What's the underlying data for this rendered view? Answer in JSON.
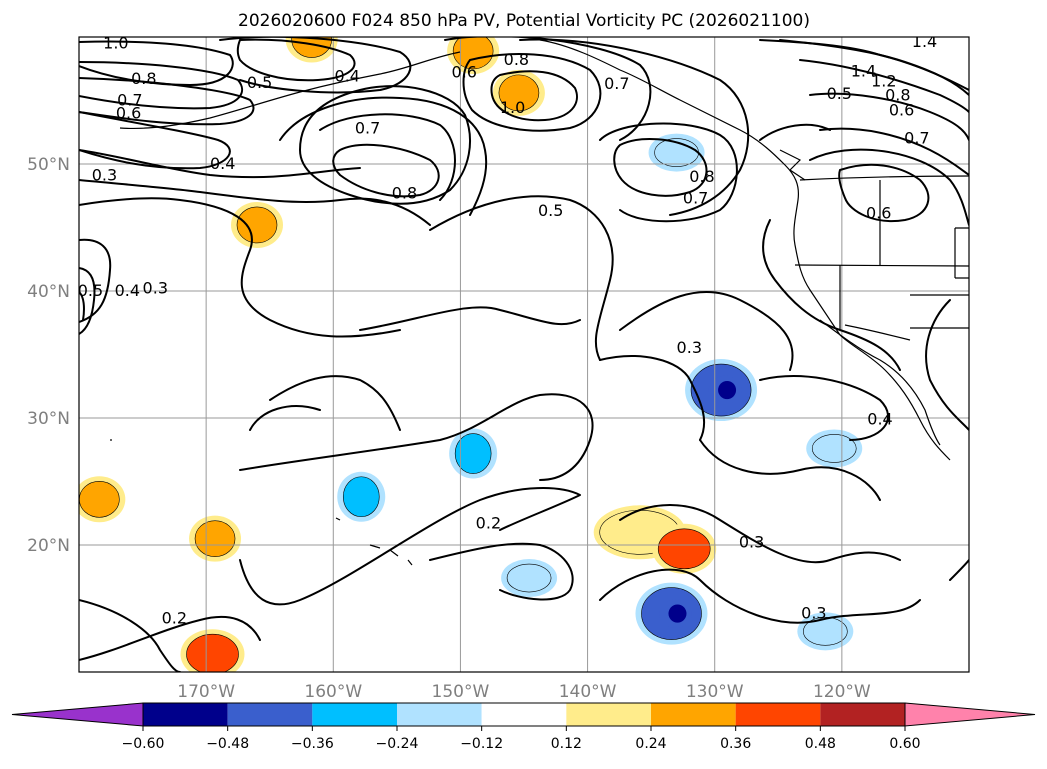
{
  "chart_data": {
    "type": "contour-map",
    "title": "2026020600 F024 850 hPa PV, Potential Vorticity PC (2026021100)",
    "projection": "lat-lon",
    "lon_range": [
      -180,
      -110
    ],
    "lat_range": [
      10,
      60
    ],
    "xaxis": {
      "ticks": [
        -170,
        -160,
        -150,
        -140,
        -130,
        -120
      ],
      "tick_labels": [
        "170°W",
        "160°W",
        "150°W",
        "140°W",
        "130°W",
        "120°W"
      ]
    },
    "yaxis": {
      "ticks": [
        20,
        30,
        40,
        50
      ],
      "tick_labels": [
        "20°N",
        "30°N",
        "40°N",
        "50°N"
      ]
    },
    "grid": true,
    "colorbar": {
      "orientation": "horizontal",
      "position": "bottom",
      "extend": "both",
      "levels": [
        -0.6,
        -0.48,
        -0.36,
        -0.24,
        -0.12,
        0.12,
        0.24,
        0.36,
        0.48,
        0.6
      ],
      "tick_labels": [
        "−0.60",
        "−0.48",
        "−0.36",
        "−0.24",
        "−0.12",
        "0.12",
        "0.24",
        "0.36",
        "0.48",
        "0.60"
      ],
      "colors": [
        "#9932cc",
        "#00008b",
        "#3a5fcd",
        "#00bfff",
        "#b0e2ff",
        "#ffffff",
        "#ffec8b",
        "#ffa500",
        "#ff4500",
        "#b22222",
        "#ff82ab"
      ]
    },
    "contour_labels": [
      {
        "text": "1.0",
        "lon": -177.1,
        "lat": 59.1
      },
      {
        "text": "0.8",
        "lon": -174.9,
        "lat": 56.3
      },
      {
        "text": "0.5",
        "lon": -165.8,
        "lat": 56.0
      },
      {
        "text": "0.7",
        "lon": -176.0,
        "lat": 54.6
      },
      {
        "text": "0.6",
        "lon": -176.1,
        "lat": 53.6
      },
      {
        "text": "0.4",
        "lon": -158.9,
        "lat": 56.5
      },
      {
        "text": "0.6",
        "lon": -149.7,
        "lat": 56.8
      },
      {
        "text": "0.8",
        "lon": -145.6,
        "lat": 57.8
      },
      {
        "text": "1.0",
        "lon": -145.9,
        "lat": 54.0
      },
      {
        "text": "0.7",
        "lon": -137.7,
        "lat": 55.9
      },
      {
        "text": "0.5",
        "lon": -120.2,
        "lat": 55.1
      },
      {
        "text": "1.4",
        "lon": -118.3,
        "lat": 56.9
      },
      {
        "text": "1.2",
        "lon": -116.7,
        "lat": 56.1
      },
      {
        "text": "0.8",
        "lon": -115.6,
        "lat": 55.0
      },
      {
        "text": "0.6",
        "lon": -115.3,
        "lat": 53.8
      },
      {
        "text": "0.7",
        "lon": -114.1,
        "lat": 51.6
      },
      {
        "text": "1.4",
        "lon": -113.5,
        "lat": 59.2
      },
      {
        "text": "0.7",
        "lon": -157.3,
        "lat": 52.4
      },
      {
        "text": "0.4",
        "lon": -168.7,
        "lat": 49.6
      },
      {
        "text": "0.3",
        "lon": -178.0,
        "lat": 48.7
      },
      {
        "text": "0.8",
        "lon": -154.4,
        "lat": 47.3
      },
      {
        "text": "0.5",
        "lon": -142.9,
        "lat": 45.9
      },
      {
        "text": "0.8",
        "lon": -131.0,
        "lat": 48.6
      },
      {
        "text": "0.7",
        "lon": -131.5,
        "lat": 46.9
      },
      {
        "text": "0.6",
        "lon": -117.1,
        "lat": 45.7
      },
      {
        "text": "0.5",
        "lon": -179.1,
        "lat": 39.6
      },
      {
        "text": "0.4",
        "lon": -176.2,
        "lat": 39.6
      },
      {
        "text": "0.3",
        "lon": -174.0,
        "lat": 39.8
      },
      {
        "text": "0.3",
        "lon": -132.0,
        "lat": 35.1
      },
      {
        "text": "0.4",
        "lon": -117.0,
        "lat": 29.5
      },
      {
        "text": "0.2",
        "lon": -147.8,
        "lat": 21.3
      },
      {
        "text": "0.3",
        "lon": -127.1,
        "lat": 19.8
      },
      {
        "text": "0.3",
        "lon": -122.2,
        "lat": 14.2
      },
      {
        "text": "0.2",
        "lon": -172.5,
        "lat": 13.8
      }
    ],
    "shaded_features": [
      {
        "level": 0.24,
        "lon": -166.0,
        "lat": 45.2,
        "color_band": "orange"
      },
      {
        "level": 0.24,
        "lon": -145.4,
        "lat": 55.6,
        "color_band": "orange"
      },
      {
        "level": 0.24,
        "lon": -149.0,
        "lat": 58.9,
        "color_band": "orange"
      },
      {
        "level": 0.24,
        "lon": -161.7,
        "lat": 59.8,
        "color_band": "orange"
      },
      {
        "level": 0.24,
        "lon": -169.3,
        "lat": 20.5,
        "color_band": "orange"
      },
      {
        "level": 0.24,
        "lon": -178.4,
        "lat": 23.6,
        "color_band": "orange"
      },
      {
        "level": 0.12,
        "lon": -135.9,
        "lat": 21.0,
        "color_band": "yellow"
      },
      {
        "level": 0.36,
        "lon": -132.4,
        "lat": 19.7,
        "color_band": "red-orange"
      },
      {
        "level": 0.36,
        "lon": -169.5,
        "lat": 11.4,
        "color_band": "red-orange"
      },
      {
        "level": -0.48,
        "lon": -129.5,
        "lat": 32.2,
        "color_band": "navy"
      },
      {
        "level": -0.48,
        "lon": -133.4,
        "lat": 14.6,
        "color_band": "navy"
      },
      {
        "level": -0.36,
        "lon": -149.0,
        "lat": 27.2,
        "color_band": "royal-blue"
      },
      {
        "level": -0.36,
        "lon": -157.8,
        "lat": 23.8,
        "color_band": "royal-blue"
      },
      {
        "level": -0.24,
        "lon": -133.0,
        "lat": 50.9,
        "color_band": "deep-sky-blue"
      },
      {
        "level": -0.24,
        "lon": -121.3,
        "lat": 13.2,
        "color_band": "deep-sky-blue"
      },
      {
        "level": -0.24,
        "lon": -144.6,
        "lat": 17.4,
        "color_band": "deep-sky-blue"
      },
      {
        "level": -0.24,
        "lon": -120.6,
        "lat": 27.6,
        "color_band": "deep-sky-blue"
      }
    ]
  }
}
